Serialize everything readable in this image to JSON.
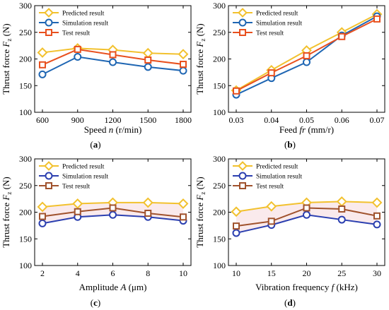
{
  "colors": {
    "predicted": "#F2C12E",
    "simulation": "#1F66B3",
    "test_top": "#E8501E",
    "sim_bottom": "#2B3FB0",
    "test_bottom": "#A0522D"
  },
  "legend": [
    "Predicted result",
    "Simulation result",
    "Test result"
  ],
  "chart_data": [
    {
      "id": "a",
      "type": "line",
      "panel_label": "(a)",
      "xlabel_main": "Speed ",
      "xlabel_sym": "n",
      "xlabel_unit": " (r/min)",
      "ylabel_main": "Thrust force ",
      "ylabel_sym": "F",
      "ylabel_sub": "z",
      "ylabel_unit": " (N)",
      "x": [
        600,
        900,
        1200,
        1500,
        1800
      ],
      "xticks": [
        "600",
        "900",
        "1200",
        "1500",
        "1800"
      ],
      "xlim": [
        600,
        1800
      ],
      "ylim": [
        100,
        300
      ],
      "yticks": [
        "100",
        "150",
        "200",
        "250",
        "300"
      ],
      "band": false,
      "series": [
        {
          "name": "Predicted result",
          "values": [
            212,
            220,
            217,
            211,
            209
          ]
        },
        {
          "name": "Simulation result",
          "values": [
            171,
            204,
            194,
            185,
            178
          ]
        },
        {
          "name": "Test result",
          "values": [
            189,
            218,
            208,
            198,
            190
          ]
        }
      ]
    },
    {
      "id": "b",
      "type": "line",
      "panel_label": "(b)",
      "xlabel_main": "Feed ",
      "xlabel_sym": "fr",
      "xlabel_unit": " (mm/r)",
      "ylabel_main": "Thrust force ",
      "ylabel_sym": "F",
      "ylabel_sub": "z",
      "ylabel_unit": " (N)",
      "x": [
        0.03,
        0.04,
        0.05,
        0.06,
        0.07
      ],
      "xticks": [
        "0.03",
        "0.04",
        "0.05",
        "0.06",
        "0.07"
      ],
      "xlim": [
        0.03,
        0.07
      ],
      "ylim": [
        100,
        300
      ],
      "yticks": [
        "100",
        "150",
        "200",
        "250",
        "300"
      ],
      "band": false,
      "series": [
        {
          "name": "Predicted result",
          "values": [
            141,
            179,
            216,
            250,
            284
          ]
        },
        {
          "name": "Simulation result",
          "values": [
            133,
            164,
            194,
            244,
            280
          ]
        },
        {
          "name": "Test result",
          "values": [
            140,
            174,
            206,
            242,
            275
          ]
        }
      ]
    },
    {
      "id": "c",
      "type": "line",
      "panel_label": "(c)",
      "xlabel_main": "Amplitude ",
      "xlabel_sym": "A",
      "xlabel_unit": " (μm)",
      "ylabel_main": "Thrust force ",
      "ylabel_sym": "F",
      "ylabel_sub": "z",
      "ylabel_unit": " (N)",
      "x": [
        2,
        4,
        6,
        8,
        10
      ],
      "xticks": [
        "2",
        "4",
        "6",
        "8",
        "10"
      ],
      "xlim": [
        2,
        10
      ],
      "ylim": [
        100,
        300
      ],
      "yticks": [
        "100",
        "150",
        "200",
        "250",
        "300"
      ],
      "band": true,
      "series": [
        {
          "name": "Predicted result",
          "values": [
            210,
            216,
            218,
            218,
            216
          ]
        },
        {
          "name": "Simulation result",
          "values": [
            179,
            191,
            195,
            191,
            184
          ]
        },
        {
          "name": "Test result",
          "values": [
            192,
            201,
            208,
            198,
            191
          ]
        }
      ]
    },
    {
      "id": "d",
      "type": "line",
      "panel_label": "(d)",
      "xlabel_main": "Vibration frequency ",
      "xlabel_sym": "f",
      "xlabel_unit": " (kHz)",
      "ylabel_main": "Thrust force ",
      "ylabel_sym": "F",
      "ylabel_sub": "z",
      "ylabel_unit": " (N)",
      "x": [
        10,
        15,
        20,
        25,
        30
      ],
      "xticks": [
        "10",
        "15",
        "20",
        "25",
        "30"
      ],
      "xlim": [
        10,
        30
      ],
      "ylim": [
        100,
        300
      ],
      "yticks": [
        "100",
        "150",
        "200",
        "250",
        "300"
      ],
      "band": true,
      "series": [
        {
          "name": "Predicted result",
          "values": [
            201,
            211,
            218,
            220,
            218
          ]
        },
        {
          "name": "Simulation result",
          "values": [
            161,
            176,
            195,
            186,
            177
          ]
        },
        {
          "name": "Test result",
          "values": [
            174,
            183,
            208,
            206,
            193
          ]
        }
      ]
    }
  ]
}
